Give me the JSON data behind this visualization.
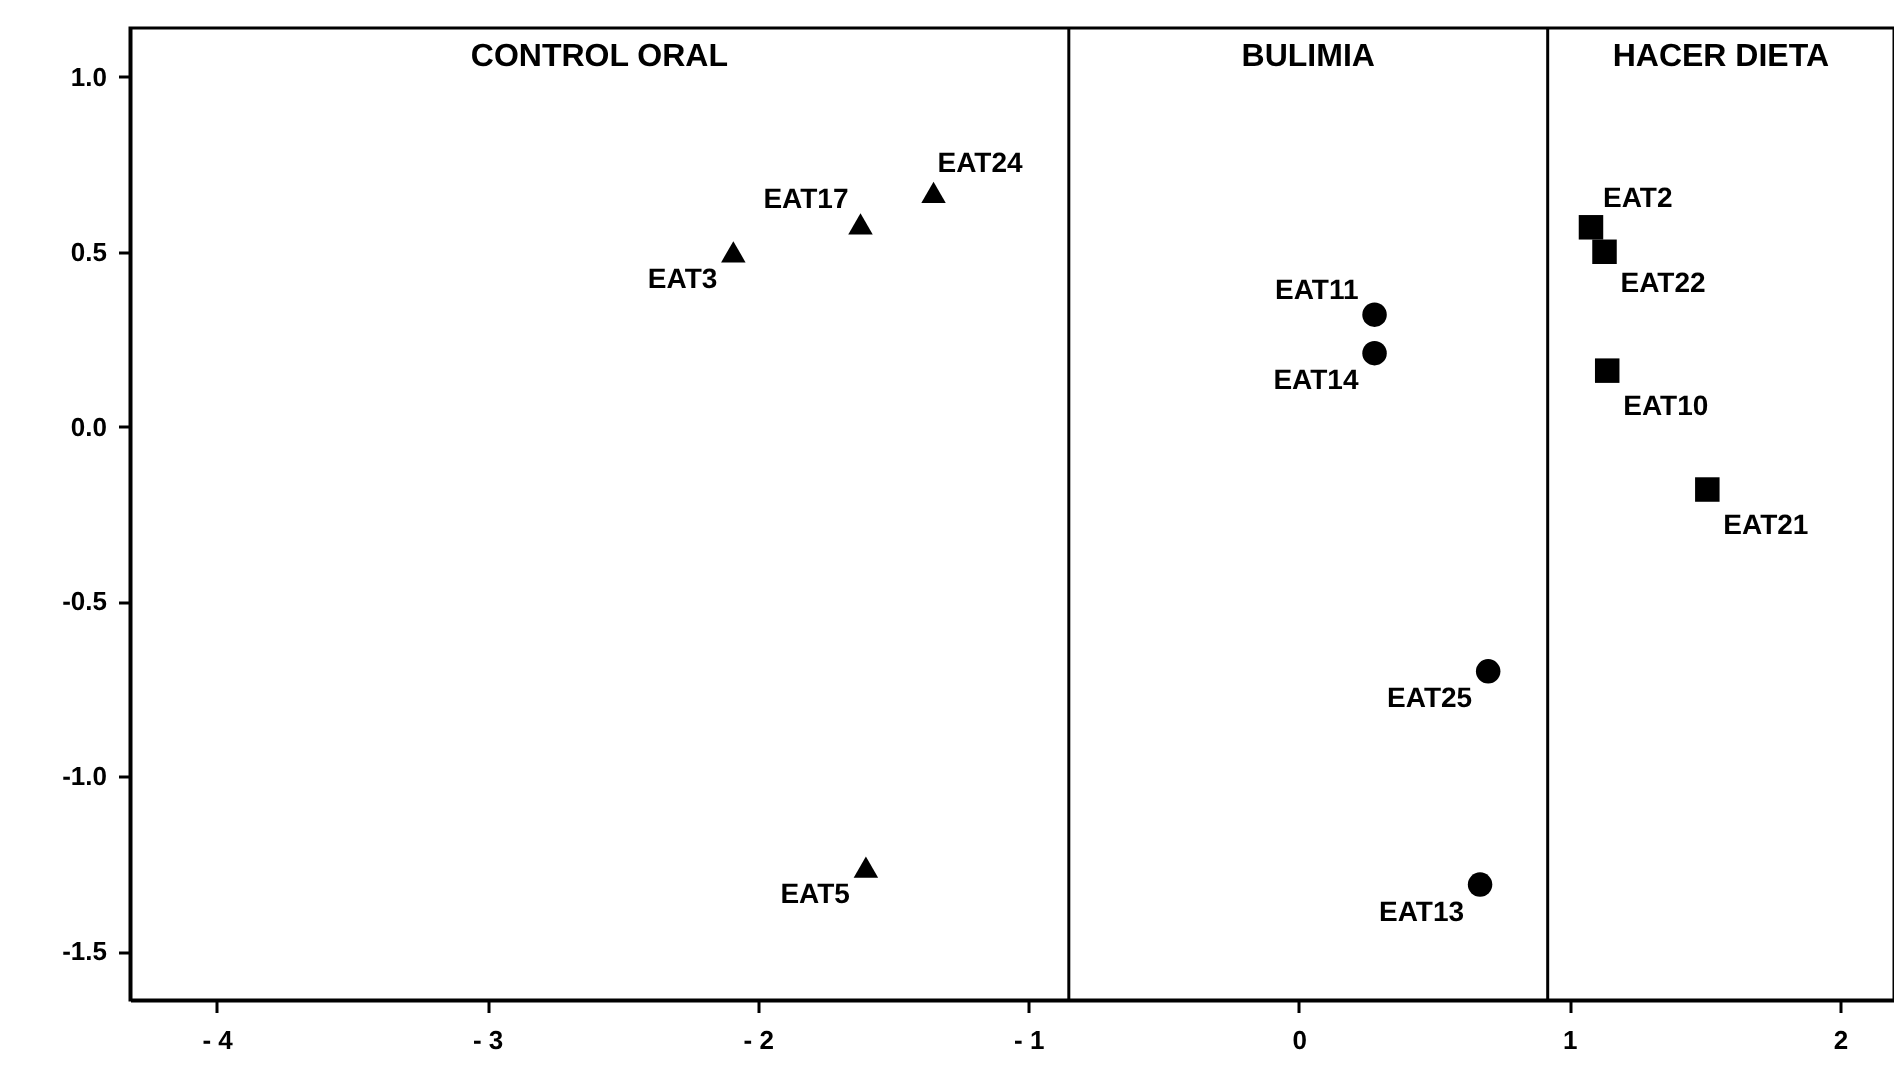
{
  "chart_data": {
    "type": "scatter",
    "xlim": [
      -4.32,
      2.2
    ],
    "ylim": [
      -1.64,
      1.14
    ],
    "xticks": [
      {
        "value": -4,
        "label": "- 4"
      },
      {
        "value": -3,
        "label": "- 3"
      },
      {
        "value": -2,
        "label": "- 2"
      },
      {
        "value": -1,
        "label": "- 1"
      },
      0,
      1,
      2
    ],
    "yticks": [
      {
        "value": -1.5,
        "label": "-1.5"
      },
      {
        "value": -1,
        "label": "-1.0"
      },
      {
        "value": -0.5,
        "label": "-0.5"
      },
      {
        "value": 0,
        "label": "0.0"
      },
      {
        "value": 0.5,
        "label": "0.5"
      },
      {
        "value": 1,
        "label": "1.0"
      }
    ],
    "grid": false,
    "ref_lines": [
      {
        "axis": "x",
        "value": -0.85,
        "color": "#000000"
      },
      {
        "axis": "x",
        "value": 0.92,
        "color": "#000000"
      }
    ],
    "series": [
      {
        "color": "#000000",
        "marker": "triangle",
        "x": [
          -2.09,
          -1.62,
          -1.35,
          -1.6
        ],
        "values": [
          0.5,
          0.58,
          0.67,
          -1.26
        ]
      },
      {
        "color": "#000000",
        "marker": "circle",
        "x": [
          0.28,
          0.28,
          0.7,
          0.67
        ],
        "values": [
          0.32,
          0.21,
          -0.7,
          -1.31
        ]
      },
      {
        "color": "#000000",
        "marker": "square",
        "x": [
          1.08,
          1.13,
          1.14,
          1.51
        ],
        "values": [
          0.57,
          0.5,
          0.16,
          -0.18
        ]
      }
    ],
    "annotations": [
      "CONTROL ORAL",
      "BULIMIA",
      "HACER DIETA",
      {
        "text": "EAT3",
        "x": -2.09,
        "y": 0.5
      },
      {
        "text": "EAT17",
        "x": -1.62,
        "y": 0.58
      },
      {
        "text": "EAT24",
        "x": -1.35,
        "y": 0.67
      },
      {
        "text": "EAT5",
        "x": -1.6,
        "y": -1.26
      },
      {
        "text": "EAT11",
        "x": 0.28,
        "y": 0.32
      },
      {
        "text": "EAT14",
        "x": 0.28,
        "y": 0.21
      },
      {
        "text": "EAT25",
        "x": 0.7,
        "y": -0.7
      },
      {
        "text": "EAT13",
        "x": 0.67,
        "y": -1.31
      },
      {
        "text": "EAT2",
        "x": 1.08,
        "y": 0.57
      },
      {
        "text": "EAT22",
        "x": 1.13,
        "y": 0.5
      },
      {
        "text": "EAT10",
        "x": 1.14,
        "y": 0.16
      },
      {
        "text": "EAT21",
        "x": 1.51,
        "y": -0.18
      }
    ]
  }
}
